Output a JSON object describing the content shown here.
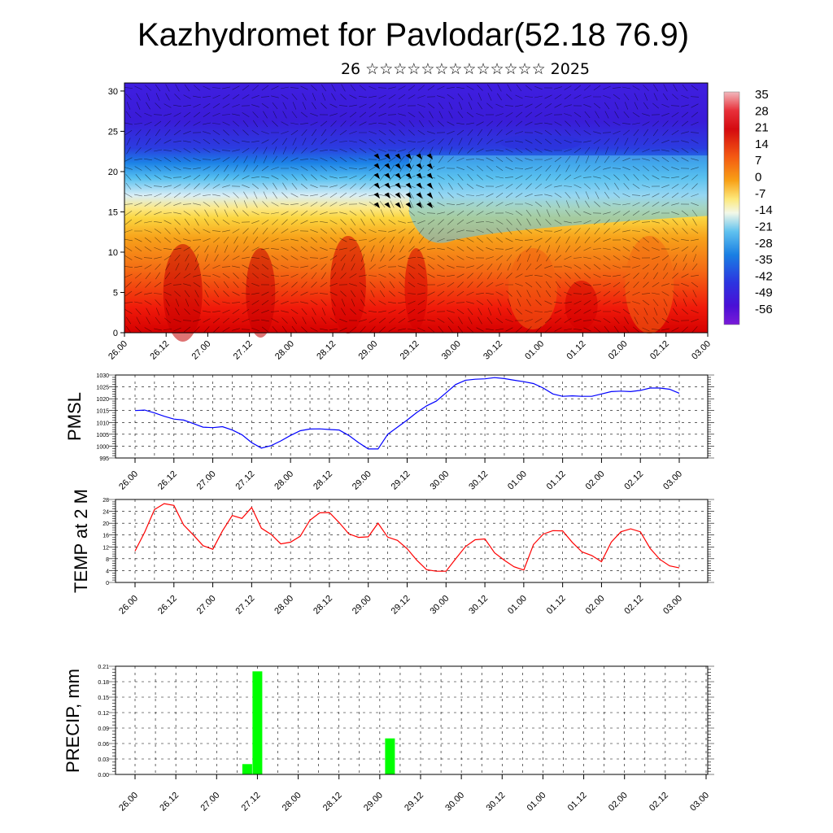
{
  "header": {
    "title": "Kazhydromet for Pavlodar(52.18 76.9)",
    "subtitle": "26 ☆☆☆☆☆☆☆☆☆☆☆☆☆ 2025"
  },
  "time_ticks": [
    "26.00",
    "26.12",
    "27.00",
    "27.12",
    "28.00",
    "28.12",
    "29.00",
    "29.12",
    "30.00",
    "30.12",
    "01.00",
    "01.12",
    "02.00",
    "02.12",
    "03.00"
  ],
  "colors": {
    "pmsl_line": "#0000ff",
    "temp_line": "#ff0000",
    "precip_bar": "#00ff00"
  },
  "chart_data": [
    {
      "id": "cross_section",
      "type": "heatmap",
      "title": "",
      "ylabel": "",
      "ylim": [
        0,
        31
      ],
      "y_ticks": [
        0,
        5,
        10,
        15,
        20,
        25,
        30
      ],
      "colorbar_labels": [
        "35",
        "28",
        "21",
        "14",
        "7",
        "0",
        "-7",
        "-14",
        "-21",
        "-28",
        "-35",
        "-42",
        "-49",
        "-56"
      ],
      "colorbar_colors": [
        "#f2b8bd",
        "#e8303a",
        "#d40a10",
        "#ec1e0f",
        "#f45a12",
        "#f88d15",
        "#fbc51f",
        "#fdee6e",
        "#f6f8d8",
        "#bde5f5",
        "#3fb1ec",
        "#1a7fe3",
        "#2c34e0",
        "#4a0fd6",
        "#7a1ad8"
      ]
    },
    {
      "id": "pmsl",
      "type": "line",
      "ylabel": "PMSL",
      "ylim": [
        995,
        1030
      ],
      "y_ticks": [
        995,
        1000,
        1005,
        1010,
        1015,
        1020,
        1025,
        1030
      ],
      "x": [
        0,
        3,
        6,
        9,
        12,
        15,
        18,
        21,
        24,
        27,
        30,
        33,
        36,
        39,
        42,
        45,
        48,
        51,
        54,
        57,
        60,
        63,
        66,
        69,
        72,
        75,
        78,
        81,
        84,
        87,
        90,
        93,
        96,
        99,
        102,
        105,
        108,
        111,
        114,
        117,
        120,
        123,
        126,
        129,
        132,
        135,
        138,
        141,
        144,
        147,
        150,
        153,
        156,
        159,
        162,
        165,
        168
      ],
      "values": [
        1015,
        1015.2,
        1014,
        1012.6,
        1011.4,
        1011,
        1009.5,
        1008,
        1007.8,
        1008.2,
        1006.8,
        1004.8,
        1001.5,
        999.2,
        1000.2,
        1002.2,
        1004.5,
        1006.5,
        1007.2,
        1007.3,
        1007,
        1006.8,
        1004.5,
        1001.5,
        998.8,
        998.8,
        1005,
        1008,
        1011,
        1014.2,
        1017,
        1019,
        1022.5,
        1026,
        1027.8,
        1028.2,
        1028.4,
        1028.9,
        1028.5,
        1027.8,
        1027.2,
        1026.4,
        1024.5,
        1022,
        1021,
        1021.2,
        1021,
        1021,
        1022,
        1023,
        1023.2,
        1023,
        1023.5,
        1024.5,
        1024.5,
        1024,
        1022.3
      ]
    },
    {
      "id": "temp2m",
      "type": "line",
      "ylabel": "TEMP at 2 M",
      "ylim": [
        0,
        28
      ],
      "y_ticks": [
        0,
        4,
        8,
        12,
        16,
        20,
        24,
        28
      ],
      "x": [
        0,
        3,
        6,
        9,
        12,
        15,
        18,
        21,
        24,
        27,
        30,
        33,
        36,
        39,
        42,
        45,
        48,
        51,
        54,
        57,
        60,
        63,
        66,
        69,
        72,
        75,
        78,
        81,
        84,
        87,
        90,
        93,
        96,
        99,
        102,
        105,
        108,
        111,
        114,
        117,
        120,
        123,
        126,
        129,
        132,
        135,
        138,
        141,
        144,
        147,
        150,
        153,
        156,
        159,
        162,
        165,
        168
      ],
      "values": [
        10.6,
        17,
        24.6,
        26.6,
        26,
        19.4,
        16,
        12.4,
        11.2,
        17.4,
        22.6,
        21.6,
        25.3,
        18.3,
        16.2,
        13,
        13.6,
        15.6,
        21,
        23.5,
        23.6,
        20.2,
        16.4,
        15.2,
        15.4,
        20,
        15.3,
        14.2,
        11.4,
        7.5,
        4.3,
        3.8,
        3.8,
        8,
        12.1,
        14.4,
        14.7,
        10,
        7.5,
        5.3,
        4.2,
        12.8,
        16.3,
        17.5,
        17.4,
        13.5,
        10.3,
        9.1,
        7,
        13.6,
        17.1,
        18.1,
        17.1,
        11.5,
        7.8,
        5.6,
        4.9
      ]
    },
    {
      "id": "precip",
      "type": "bar",
      "ylabel": "PRECIP, mm",
      "ylim": [
        0,
        0.21
      ],
      "y_ticks": [
        "0.00",
        "0.03",
        "0.06",
        "0.09",
        "0.12",
        "0.15",
        "0.18",
        "0.21"
      ],
      "bars": [
        {
          "x": 33,
          "value": 0.02
        },
        {
          "x": 36,
          "value": 0.2
        },
        {
          "x": 75,
          "value": 0.07
        }
      ]
    }
  ]
}
